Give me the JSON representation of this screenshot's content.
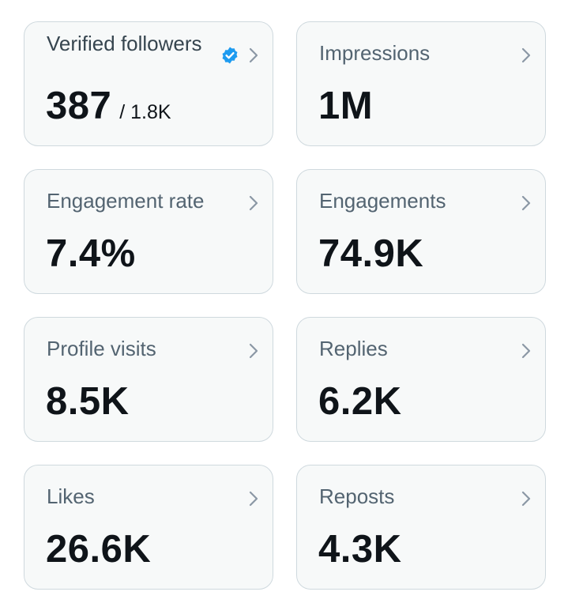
{
  "cards": [
    {
      "label": "Verified followers",
      "value": "387",
      "subvalue": "/ 1.8K",
      "badge": "verified-badge-icon"
    },
    {
      "label": "Impressions",
      "value": "1M"
    },
    {
      "label": "Engagement rate",
      "value": "7.4%"
    },
    {
      "label": "Engagements",
      "value": "74.9K"
    },
    {
      "label": "Profile visits",
      "value": "8.5K"
    },
    {
      "label": "Replies",
      "value": "6.2K"
    },
    {
      "label": "Likes",
      "value": "26.6K"
    },
    {
      "label": "Reposts",
      "value": "4.3K"
    }
  ],
  "colors": {
    "card_background": "#f7f9f9",
    "card_border": "#cfd9de",
    "label": "#536471",
    "value": "#0f1419",
    "chevron": "#8b98a5",
    "verified_badge": "#1d9bf0"
  },
  "icons": {
    "chevron": "chevron-right-icon",
    "verified": "verified-badge-icon"
  }
}
